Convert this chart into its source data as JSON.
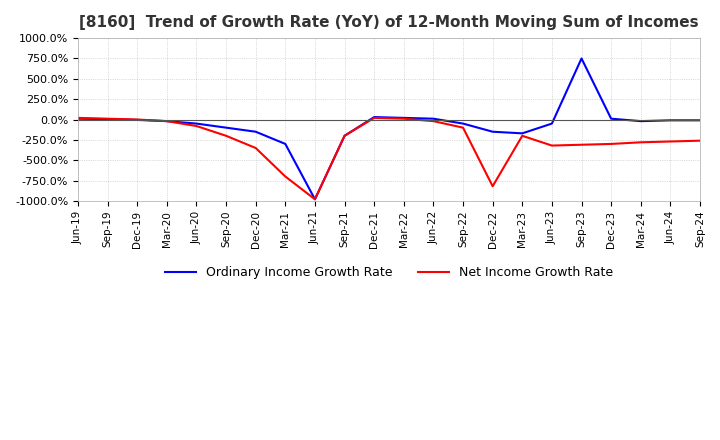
{
  "title": "[8160]  Trend of Growth Rate (YoY) of 12-Month Moving Sum of Incomes",
  "ylim": [
    -1000,
    1000
  ],
  "yticks": [
    -1000,
    -750,
    -500,
    -250,
    0,
    250,
    500,
    750,
    1000
  ],
  "ytick_labels": [
    "-1000.0%",
    "-750.0%",
    "-500.0%",
    "-250.0%",
    "0.0%",
    "250.0%",
    "500.0%",
    "750.0%",
    "1000.0%"
  ],
  "background_color": "#ffffff",
  "grid_color": "#aaaaaa",
  "ordinary_color": "#0000ff",
  "net_color": "#ff0000",
  "ordinary_label": "Ordinary Income Growth Rate",
  "net_label": "Net Income Growth Rate",
  "dates": [
    "Jun-19",
    "Sep-19",
    "Dec-19",
    "Mar-20",
    "Jun-20",
    "Sep-20",
    "Dec-20",
    "Mar-21",
    "Jun-21",
    "Sep-21",
    "Dec-21",
    "Mar-22",
    "Jun-22",
    "Sep-22",
    "Dec-22",
    "Mar-23",
    "Jun-23",
    "Sep-23",
    "Dec-23",
    "Mar-24",
    "Jun-24",
    "Sep-24"
  ],
  "ordinary_values": [
    10,
    5,
    -5,
    -20,
    -50,
    -100,
    -150,
    -300,
    -980,
    -200,
    30,
    20,
    10,
    -50,
    -150,
    -170,
    -50,
    750,
    10,
    -20,
    -10,
    -10
  ],
  "net_values": [
    20,
    10,
    0,
    -20,
    -80,
    -200,
    -350,
    -700,
    -980,
    -200,
    20,
    10,
    -20,
    -100,
    -820,
    -200,
    -320,
    -310,
    -300,
    -280,
    -270,
    -260
  ]
}
